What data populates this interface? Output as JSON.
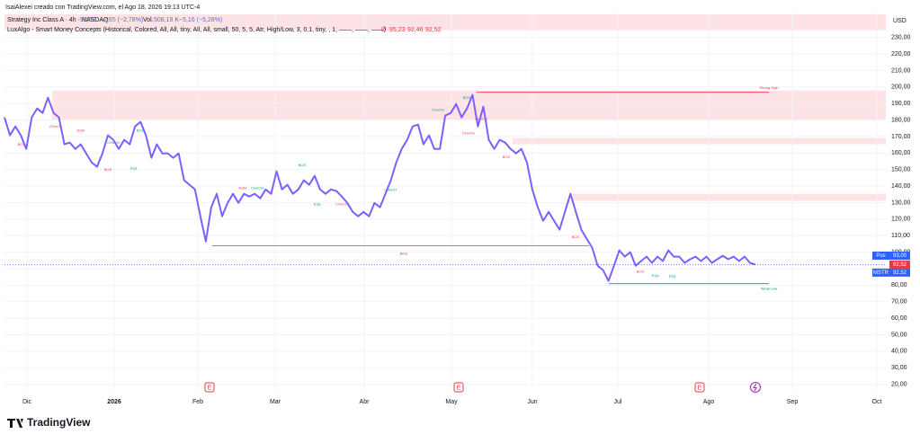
{
  "header": {
    "credit": "IsaiAlexei creado con TradingView.com, el Ago 18, 2026 19:13 UTC-4",
    "symbol": "Strategy Inc Class A · 4h · NASDAQ",
    "last": "92,52",
    "change": "−2,65 (−2,78%)",
    "volume_label": "Vol.",
    "volume": "508,19 K",
    "volume_change": "−5,16 (−5,28%)",
    "indicator": "LuxAlgo - Smart Money Concepts (Historical, Colored, All, All, tiny, All, All, small, 50, 5, 5, Atr, High/Low, 3, 0,1, tiny, , 1, ——, ——, ——)",
    "indicator_values": [
      "Ø",
      "95,23",
      "92,46",
      "92,52"
    ],
    "currency": "USD"
  },
  "footer": {
    "brand": "TradingView"
  },
  "events": [
    "E",
    "E",
    "E"
  ],
  "chart_data": {
    "type": "line",
    "xtick_labels": [
      "Dic",
      "2026",
      "Feb",
      "Mar",
      "Abr",
      "May",
      "Jun",
      "Jul",
      "Ago",
      "Sep",
      "Oct"
    ],
    "series": [
      {
        "name": "MSTR",
        "color": "#7b61ff",
        "values": [
          181.6,
          170.7,
          176.1,
          170.7,
          162.5,
          181.6,
          187,
          184.3,
          193.5,
          184.3,
          181.6,
          165.3,
          166.3,
          162.5,
          165.3,
          159.8,
          154.4,
          151.7,
          159.8,
          170.7,
          168,
          162.5,
          168,
          165.3,
          176.1,
          178.9,
          170.7,
          157.1,
          165.3,
          159.8,
          159.8,
          157.1,
          159.8,
          143.5,
          140.8,
          138,
          121.7,
          106.5,
          127.2,
          135.3,
          121.7,
          129.8,
          135.3,
          129.8,
          135.3,
          133.7,
          135.3,
          132.6,
          138,
          135.3,
          148.9,
          138,
          140.8,
          135.3,
          138,
          143.5,
          140.8,
          146.2,
          138,
          135.3,
          138,
          137,
          133.7,
          129.8,
          124.4,
          121.7,
          124.4,
          121.7,
          129.8,
          127.2,
          135.3,
          143.5,
          154.4,
          162.5,
          168,
          176.1,
          177.2,
          165.3,
          170.7,
          162.5,
          162.5,
          182.7,
          184.3,
          189.7,
          181.6,
          187,
          195.2,
          176.1,
          188.1,
          168,
          162.5,
          168,
          166.3,
          162.5,
          159.8,
          162.5,
          154.4,
          138,
          127.2,
          119,
          124.4,
          119,
          113.6,
          124.4,
          135.3,
          124.4,
          113.6,
          108.1,
          102.7,
          91.8,
          89.1,
          82.6,
          91.8,
          101.1,
          97.3,
          100,
          91.8,
          94.6,
          97.3,
          93.5,
          97.3,
          94.6,
          101.1,
          97.3,
          97.3,
          93.5,
          95.7,
          97.3,
          94.6,
          97.3,
          93.5,
          95.7,
          97.8,
          95.7,
          97.3,
          94.6,
          97.3,
          93.5,
          92.52
        ]
      }
    ],
    "ylim": [
      16,
      244.5
    ],
    "yticks": [
      {
        "value": 230,
        "label": "230,00"
      },
      {
        "value": 220,
        "label": "220,00"
      },
      {
        "value": 210,
        "label": "210,00"
      },
      {
        "value": 200,
        "label": "200,00"
      },
      {
        "value": 190,
        "label": "190,00"
      },
      {
        "value": 180,
        "label": "180,00"
      },
      {
        "value": 170,
        "label": "170,00"
      },
      {
        "value": 160,
        "label": "160,00"
      },
      {
        "value": 150,
        "label": "150,00"
      },
      {
        "value": 140,
        "label": "140,00"
      },
      {
        "value": 130,
        "label": "130,00"
      },
      {
        "value": 120,
        "label": "120,00"
      },
      {
        "value": 110,
        "label": "110,00"
      },
      {
        "value": 100,
        "label": "100,00"
      },
      {
        "value": 90,
        "label": "90,00"
      },
      {
        "value": 80,
        "label": "80,00"
      },
      {
        "value": 70,
        "label": "70,00"
      },
      {
        "value": 60,
        "label": "60,00"
      },
      {
        "value": 50,
        "label": "50,00"
      },
      {
        "value": 40,
        "label": "40,00"
      },
      {
        "value": 30,
        "label": "30,00"
      },
      {
        "value": 20,
        "label": "20,00"
      }
    ],
    "grid": true,
    "zones": [
      {
        "from": 234.4,
        "to": 244,
        "color": "#fde3e5"
      },
      {
        "from": 180,
        "to": 197.9,
        "color": "#fde3e5"
      },
      {
        "from": 165.3,
        "to": 169.1,
        "color": "#fde3e5"
      },
      {
        "from": 131,
        "to": 135.3,
        "color": "#fde3e5"
      }
    ],
    "levels": [
      {
        "price": 103.8,
        "color": "#f23645"
      },
      {
        "price": 196.8,
        "color": "#f23645"
      },
      {
        "price": 80.9,
        "color": "#089981"
      }
    ],
    "annotations": [
      {
        "text": "BOS",
        "price": 165,
        "color": "#f23645"
      },
      {
        "text": "CHoCH",
        "price": 176,
        "color": "#f23645"
      },
      {
        "text": "EQH",
        "price": 173.4,
        "color": "#f23645"
      },
      {
        "text": "CHoCH",
        "price": 166.3,
        "color": "#089981"
      },
      {
        "text": "BOS",
        "price": 173.4,
        "color": "#089981"
      },
      {
        "text": "BOS",
        "price": 150,
        "color": "#f23645"
      },
      {
        "text": "EQL",
        "price": 150.6,
        "color": "#089981"
      },
      {
        "text": "EQH",
        "price": 138.6,
        "color": "#f23645"
      },
      {
        "text": "CHoCH",
        "price": 138.6,
        "color": "#089981"
      },
      {
        "text": "BOS",
        "price": 152.7,
        "color": "#089981"
      },
      {
        "text": "EQL",
        "price": 128.8,
        "color": "#089981"
      },
      {
        "text": "CHoCH",
        "price": 128.8,
        "color": "#f23645"
      },
      {
        "text": "CHoCH",
        "price": 137.5,
        "color": "#089981"
      },
      {
        "text": "CHoCH",
        "price": 186,
        "color": "#089981"
      },
      {
        "text": "BOS",
        "price": 193.5,
        "color": "#089981"
      },
      {
        "text": "CHoCH",
        "price": 171.8,
        "color": "#f23645"
      },
      {
        "text": "CHoCH",
        "price": 180.5,
        "color": "#f23645"
      },
      {
        "text": "BOS",
        "price": 157.6,
        "color": "#f23645"
      },
      {
        "text": "BOS",
        "price": 109.2,
        "color": "#f23645"
      },
      {
        "text": "BOS",
        "price": 98.9,
        "color": "#f23645"
      },
      {
        "text": "BOS",
        "price": 88,
        "color": "#f23645"
      },
      {
        "text": "EQL",
        "price": 85.8,
        "color": "#089981"
      },
      {
        "text": "EQL",
        "price": 85.3,
        "color": "#089981"
      },
      {
        "text": "Strong High",
        "price": 199.5,
        "color": "#f23645"
      },
      {
        "text": "Weak Low",
        "price": 77.7,
        "color": "#089981"
      }
    ],
    "price_tags": [
      {
        "label": "Pos",
        "value": 93,
        "value_label": "93,00",
        "color": "#2962ff"
      },
      {
        "label": null,
        "value": 92.52,
        "value_label": "92,52",
        "color": "#f23645"
      },
      {
        "label": "MSTR",
        "value": 92.52,
        "value_label": "92,52",
        "color": "#2962ff"
      }
    ]
  }
}
